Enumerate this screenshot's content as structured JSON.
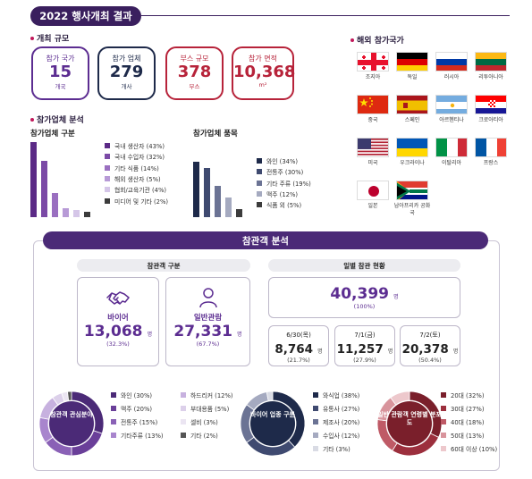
{
  "header": {
    "title": "2022 행사개최 결과"
  },
  "scale": {
    "heading": "개최 규모",
    "items": [
      {
        "label": "참가 국가",
        "value": "15",
        "unit": "개국"
      },
      {
        "label": "참가 업체",
        "value": "279",
        "unit": "개사"
      },
      {
        "label": "부스 규모",
        "value": "378",
        "unit": "부스"
      },
      {
        "label": "참가 면적",
        "value": "10,368",
        "unit": "m²"
      }
    ]
  },
  "exhibitor": {
    "heading": "참가업체 분석",
    "division": {
      "title": "참가업체 구분",
      "items": [
        {
          "label": "국내 생산자 (43%)",
          "pct": 43,
          "color": "#5b2a86"
        },
        {
          "label": "국내 수입자 (32%)",
          "pct": 32,
          "color": "#7b4aa6"
        },
        {
          "label": "기타 식품 (14%)",
          "pct": 14,
          "color": "#9a6fc0"
        },
        {
          "label": "해외 생산자 (5%)",
          "pct": 5,
          "color": "#b79ad6"
        },
        {
          "label": "협회/교육기관 (4%)",
          "pct": 4,
          "color": "#d5c6e8"
        },
        {
          "label": "미디어 및 기타 (2%)",
          "pct": 2,
          "color": "#3c3c3c"
        }
      ]
    },
    "items": {
      "title": "참가업체 품목",
      "items": [
        {
          "label": "와인 (34%)",
          "pct": 34,
          "color": "#1e2a4a"
        },
        {
          "label": "전통주 (30%)",
          "pct": 30,
          "color": "#3f4a70"
        },
        {
          "label": "기타 주류 (19%)",
          "pct": 19,
          "color": "#6b7394"
        },
        {
          "label": "맥주 (12%)",
          "pct": 12,
          "color": "#a5aac0"
        },
        {
          "label": "식품 외 (5%)",
          "pct": 5,
          "color": "#3c3c3c"
        }
      ]
    }
  },
  "countries": {
    "heading": "해외 참가국가",
    "list": [
      {
        "name": "조지아",
        "flag": "georgia"
      },
      {
        "name": "독일",
        "flag": "germany"
      },
      {
        "name": "러시아",
        "flag": "russia"
      },
      {
        "name": "리투아니아",
        "flag": "lithuania"
      },
      {
        "name": "중국",
        "flag": "china"
      },
      {
        "name": "스페인",
        "flag": "spain"
      },
      {
        "name": "아르헨티나",
        "flag": "argentina"
      },
      {
        "name": "크로아티아",
        "flag": "croatia"
      },
      {
        "name": "미국",
        "flag": "usa"
      },
      {
        "name": "우크라이나",
        "flag": "ukraine"
      },
      {
        "name": "이탈리아",
        "flag": "italy"
      },
      {
        "name": "프랑스",
        "flag": "france"
      },
      {
        "name": "일본",
        "flag": "japan"
      },
      {
        "name": "남아프리카 공화국",
        "flag": "south-africa"
      }
    ]
  },
  "visitors": {
    "heading": "참관객 분석",
    "division": {
      "title": "참관객 구분",
      "buyer": {
        "label": "바이어",
        "value": "13,068",
        "unit": "명",
        "pct": "(32.3%)"
      },
      "general": {
        "label": "일반관람",
        "value": "27,331",
        "unit": "명",
        "pct": "(67.7%)"
      }
    },
    "daily": {
      "title": "일별 참관 현황",
      "total": {
        "value": "40,399",
        "unit": "명",
        "pct": "(100%)"
      },
      "days": [
        {
          "date": "6/30(목)",
          "value": "8,764",
          "unit": "명",
          "pct": "(21.7%)"
        },
        {
          "date": "7/1(금)",
          "value": "11,257",
          "unit": "명",
          "pct": "(27.9%)"
        },
        {
          "date": "7/2(토)",
          "value": "20,378",
          "unit": "명",
          "pct": "(50.4%)"
        }
      ]
    }
  },
  "chart_data": [
    {
      "type": "pie",
      "title": "참관객 관심분야",
      "categories": [
        "와인",
        "맥주",
        "전통주",
        "기타주류",
        "하드리커",
        "부대용품",
        "셀비",
        "기타"
      ],
      "values": [
        30,
        20,
        15,
        13,
        12,
        5,
        3,
        2
      ],
      "labels": [
        "와인 (30%)",
        "맥주 (20%)",
        "전통주 (15%)",
        "기타주류 (13%)",
        "하드리커 (12%)",
        "부대용품 (5%)",
        "셀비 (3%)",
        "기타 (2%)"
      ],
      "colors": [
        "#4b2a77",
        "#6a3f99",
        "#8a61b6",
        "#a885cd",
        "#c7b1df",
        "#dcd0ea",
        "#ebe5f2",
        "#555555"
      ]
    },
    {
      "type": "pie",
      "title": "바이어 업종 구분",
      "categories": [
        "와식업",
        "유통사",
        "제조사",
        "수입사",
        "기타"
      ],
      "values": [
        38,
        27,
        20,
        12,
        3
      ],
      "labels": [
        "와식업 (38%)",
        "유통사 (27%)",
        "제조사 (20%)",
        "수입사 (12%)",
        "기타 (3%)"
      ],
      "colors": [
        "#1e2a4a",
        "#3f4a70",
        "#6b7394",
        "#a5aac0",
        "#d9dbe4"
      ]
    },
    {
      "type": "pie",
      "title": "일반 관람객 연령별 분포도",
      "categories": [
        "20대",
        "30대",
        "40대",
        "50대",
        "60대 이상"
      ],
      "values": [
        32,
        27,
        18,
        13,
        10
      ],
      "labels": [
        "20대 (32%)",
        "30대 (27%)",
        "40대 (18%)",
        "50대 (13%)",
        "60대 이상 (10%)"
      ],
      "colors": [
        "#7a1f2b",
        "#9c2f3d",
        "#bf5a66",
        "#d8949c",
        "#edc8cc"
      ]
    }
  ]
}
